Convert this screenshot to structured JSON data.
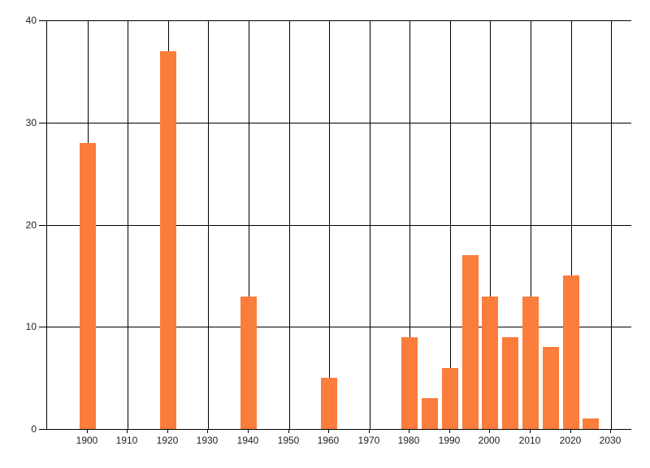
{
  "chart_data": {
    "type": "bar",
    "title": "",
    "xlabel": "",
    "ylabel": "",
    "legend": null,
    "grid": true,
    "background_color": "#ffffff",
    "bar_color": "#fa7d3b",
    "axis_color": "#000000",
    "grid_color": "#000000",
    "text_color": "#1c1c26",
    "xlim": [
      1890,
      2035
    ],
    "ylim": [
      0,
      40
    ],
    "x_ticks": [
      1900,
      1910,
      1920,
      1930,
      1940,
      1950,
      1960,
      1970,
      1980,
      1990,
      2000,
      2010,
      2020,
      2030
    ],
    "y_ticks": [
      0,
      10,
      20,
      30,
      40
    ],
    "bar_width_years": 4,
    "x": [
      1900,
      1920,
      1940,
      1960,
      1980,
      1985,
      1990,
      1995,
      2000,
      2005,
      2010,
      2015,
      2020,
      2025
    ],
    "values": [
      28,
      37,
      13,
      5,
      9,
      3,
      6,
      17,
      13,
      9,
      13,
      8,
      15,
      1
    ]
  }
}
